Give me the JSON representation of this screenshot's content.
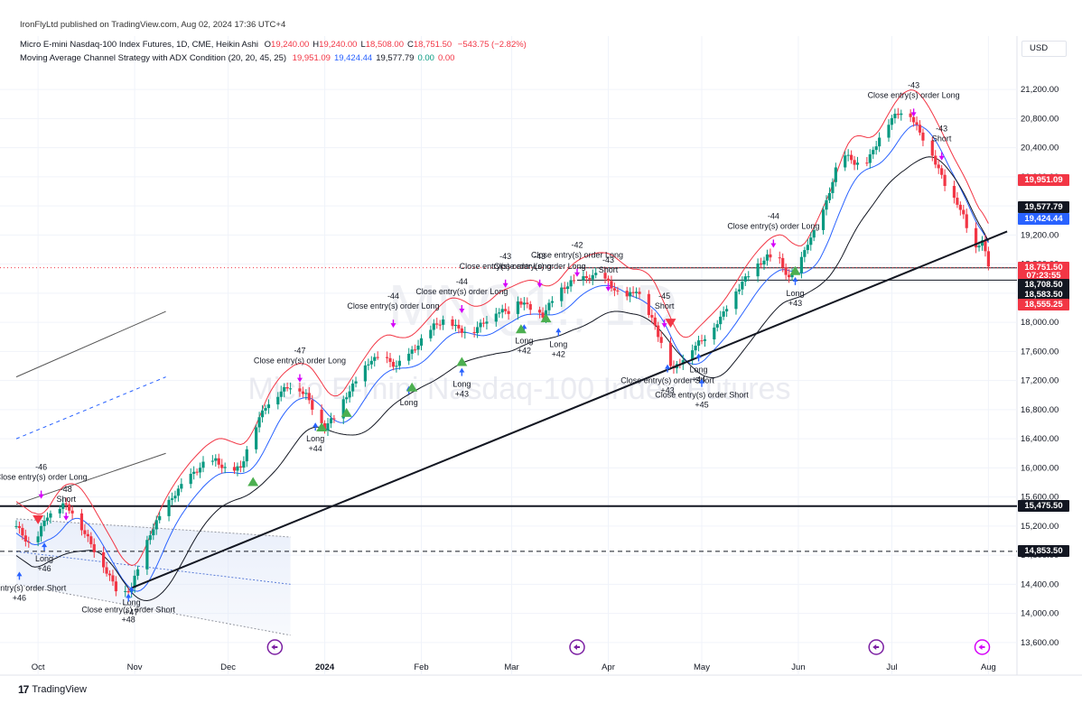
{
  "published": "IronFlyLtd published on TradingView.com, Aug 02, 2024 17:36 UTC+4",
  "symbol_line": {
    "name": "Micro E-mini Nasdaq-100 Index Futures, 1D, CME, Heikin Ashi",
    "ohlc": [
      {
        "k": "O",
        "v": "19,240.00"
      },
      {
        "k": "H",
        "v": "19,240.00"
      },
      {
        "k": "L",
        "v": "18,508.00"
      },
      {
        "k": "C",
        "v": "18,751.50"
      }
    ],
    "change": "−543.75 (−2.82%)",
    "change_color": "#f23645"
  },
  "indicator_line": {
    "name": "Moving Average Channel Strategy with ADX Condition (20, 20, 45, 25)",
    "values": [
      {
        "v": "19,951.09",
        "color": "#f23645"
      },
      {
        "v": "19,424.44",
        "color": "#2962ff"
      },
      {
        "v": "19,577.79",
        "color": "#131722"
      },
      {
        "v": "0.00",
        "color": "#089981"
      },
      {
        "v": "0.00",
        "color": "#f23645"
      }
    ]
  },
  "currency_button": "USD",
  "watermark": {
    "symbol": "MNQ1!, 1D",
    "name": "Micro E-mini Nasdaq-100 Index Futures"
  },
  "footer": {
    "brand": "TradingView",
    "logo": "17"
  },
  "chart_data": {
    "type": "candlestick",
    "title": "Micro E-mini Nasdaq-100 Index Futures, 1D, CME, Heikin Ashi",
    "ylim": [
      13400,
      21500
    ],
    "y_ticks": [
      13600,
      14000,
      14400,
      14800,
      15200,
      15600,
      16000,
      16400,
      16800,
      17200,
      17600,
      18000,
      18400,
      18800,
      19200,
      19600,
      20000,
      20400,
      20800,
      21200
    ],
    "y_tick_labels": [
      "13,600.00",
      "14,000.00",
      "14,400.00",
      "14,800.00",
      "15,200.00",
      "15,600.00",
      "16,000.00",
      "16,400.00",
      "16,800.00",
      "17,200.00",
      "17,600.00",
      "18,000.00",
      "18,400.00",
      "18,800.00",
      "19,200.00",
      "19,600.00",
      "20,000.00",
      "20,400.00",
      "20,800.00",
      "21,200.00"
    ],
    "x_ticks": [
      {
        "label": "Oct",
        "day": 7
      },
      {
        "label": "Nov",
        "day": 38
      },
      {
        "label": "Dec",
        "day": 68
      },
      {
        "label": "2024",
        "day": 99
      },
      {
        "label": "Feb",
        "day": 130
      },
      {
        "label": "Mar",
        "day": 159
      },
      {
        "label": "Apr",
        "day": 190
      },
      {
        "label": "May",
        "day": 220
      },
      {
        "label": "Jun",
        "day": 251
      },
      {
        "label": "Jul",
        "day": 281
      },
      {
        "label": "Aug",
        "day": 312
      }
    ],
    "x_range_days": [
      0,
      320
    ],
    "price_path": [
      [
        0,
        15200
      ],
      [
        5,
        14900
      ],
      [
        10,
        15350
      ],
      [
        15,
        15500
      ],
      [
        18,
        15400
      ],
      [
        22,
        15100
      ],
      [
        26,
        14800
      ],
      [
        30,
        14500
      ],
      [
        33,
        14250
      ],
      [
        37,
        14350
      ],
      [
        40,
        14750
      ],
      [
        43,
        15100
      ],
      [
        47,
        15400
      ],
      [
        51,
        15650
      ],
      [
        55,
        15850
      ],
      [
        60,
        16050
      ],
      [
        64,
        16100
      ],
      [
        68,
        15950
      ],
      [
        72,
        16000
      ],
      [
        76,
        16500
      ],
      [
        80,
        16850
      ],
      [
        85,
        17050
      ],
      [
        89,
        17150
      ],
      [
        93,
        17000
      ],
      [
        96,
        16750
      ],
      [
        99,
        16550
      ],
      [
        102,
        16700
      ],
      [
        106,
        17000
      ],
      [
        110,
        17250
      ],
      [
        114,
        17500
      ],
      [
        118,
        17500
      ],
      [
        122,
        17400
      ],
      [
        126,
        17550
      ],
      [
        130,
        17750
      ],
      [
        134,
        17950
      ],
      [
        138,
        18050
      ],
      [
        142,
        17900
      ],
      [
        146,
        17850
      ],
      [
        150,
        18000
      ],
      [
        154,
        18150
      ],
      [
        158,
        18150
      ],
      [
        161,
        18300
      ],
      [
        165,
        18200
      ],
      [
        169,
        18100
      ],
      [
        172,
        18300
      ],
      [
        175,
        18450
      ],
      [
        178,
        18550
      ],
      [
        182,
        18600
      ],
      [
        186,
        18650
      ],
      [
        190,
        18550
      ],
      [
        193,
        18400
      ],
      [
        196,
        18350
      ],
      [
        199,
        18450
      ],
      [
        202,
        18200
      ],
      [
        205,
        17950
      ],
      [
        208,
        17600
      ],
      [
        211,
        17350
      ],
      [
        214,
        17500
      ],
      [
        217,
        17650
      ],
      [
        220,
        17750
      ],
      [
        223,
        17900
      ],
      [
        226,
        18050
      ],
      [
        229,
        18300
      ],
      [
        233,
        18550
      ],
      [
        237,
        18750
      ],
      [
        241,
        18900
      ],
      [
        245,
        18850
      ],
      [
        248,
        18600
      ],
      [
        251,
        18750
      ],
      [
        254,
        19100
      ],
      [
        257,
        19300
      ],
      [
        260,
        19650
      ],
      [
        263,
        20100
      ],
      [
        266,
        20300
      ],
      [
        269,
        20200
      ],
      [
        272,
        20150
      ],
      [
        275,
        20350
      ],
      [
        278,
        20650
      ],
      [
        281,
        20800
      ],
      [
        284,
        20900
      ],
      [
        287,
        20850
      ],
      [
        290,
        20600
      ],
      [
        293,
        20400
      ],
      [
        296,
        20100
      ],
      [
        299,
        19800
      ],
      [
        302,
        19650
      ],
      [
        304,
        19450
      ],
      [
        306,
        19150
      ],
      [
        308,
        19000
      ],
      [
        310,
        19150
      ],
      [
        312,
        18750
      ]
    ],
    "series": [
      {
        "name": "",
        "color": "#f23645",
        "offset": 350,
        "last": "19,951.09"
      },
      {
        "name": "",
        "color": "#2962ff",
        "offset": -150,
        "last": "19,424.44"
      },
      {
        "name": "",
        "color": "#131722",
        "offset": -420,
        "last": "19,577.79"
      }
    ],
    "price_labels": [
      {
        "v": "19,951.09",
        "price": 19951,
        "bg": "#f23645"
      },
      {
        "v": "19,577.79",
        "price": 19578,
        "bg": "#131722"
      },
      {
        "v": "19,424.44",
        "price": 19424,
        "bg": "#2962ff"
      },
      {
        "v": "18,751.50",
        "price": 18751,
        "bg": "#f23645"
      },
      {
        "v": "07:23:55",
        "price": 18640,
        "bg": "#f23645"
      },
      {
        "v": "18,708.50",
        "price": 18520,
        "bg": "#131722"
      },
      {
        "v": "18,583.50",
        "price": 18380,
        "bg": "#131722"
      },
      {
        "v": "18,555.25",
        "price": 18240,
        "bg": "#f23645"
      },
      {
        "v": "15,475.50",
        "price": 15475,
        "bg": "#131722"
      },
      {
        "v": "14,853.50",
        "price": 14853,
        "bg": "#131722"
      }
    ],
    "horizontal_lines": [
      {
        "price": 15475,
        "style": "solid",
        "width": 2
      },
      {
        "price": 14853,
        "style": "dashed",
        "width": 1
      }
    ],
    "trendline": {
      "from": [
        37,
        14350
      ],
      "to": [
        318,
        19250
      ]
    },
    "annotations": [
      {
        "day": 8,
        "price": 15700,
        "lines": [
          "-46",
          "Close entry(s) order Long"
        ],
        "above": true
      },
      {
        "day": 16,
        "price": 15400,
        "lines": [
          "-48",
          "Short"
        ],
        "above": true
      },
      {
        "day": 9,
        "price": 14850,
        "lines": [
          "Long",
          "+46"
        ],
        "above": false
      },
      {
        "day": 1,
        "price": 14450,
        "lines": [
          "Close entry(s) order Short",
          "+46"
        ],
        "above": false
      },
      {
        "day": 37,
        "price": 14250,
        "lines": [
          "Long",
          "+47"
        ],
        "above": false
      },
      {
        "day": 36,
        "price": 14150,
        "lines": [
          "Close entry(s) order Short",
          "+48"
        ],
        "above": false
      },
      {
        "day": 91,
        "price": 17300,
        "lines": [
          "-47",
          "Close entry(s) order Long"
        ],
        "above": true
      },
      {
        "day": 96,
        "price": 16500,
        "lines": [
          "Long",
          "+44"
        ],
        "above": false
      },
      {
        "day": 121,
        "price": 18050,
        "lines": [
          "-44",
          "Close entry(s) order Long"
        ],
        "above": true
      },
      {
        "day": 126,
        "price": 17000,
        "lines": [
          "Long"
        ],
        "above": false
      },
      {
        "day": 143,
        "price": 18250,
        "lines": [
          "-44",
          "Close entry(s) order Long"
        ],
        "above": true
      },
      {
        "day": 143,
        "price": 17250,
        "lines": [
          "Long",
          "+43"
        ],
        "above": false
      },
      {
        "day": 157,
        "price": 18600,
        "lines": [
          "-43",
          "Close entry(s) order Long"
        ],
        "above": true
      },
      {
        "day": 163,
        "price": 17850,
        "lines": [
          "Long",
          "+42"
        ],
        "above": false
      },
      {
        "day": 168,
        "price": 18600,
        "lines": [
          "-43",
          "Close entry(s) order Long"
        ],
        "above": true
      },
      {
        "day": 174,
        "price": 17800,
        "lines": [
          "Long",
          "+42"
        ],
        "above": false
      },
      {
        "day": 180,
        "price": 18750,
        "lines": [
          "-42",
          "Close entry(s) order Long"
        ],
        "above": true
      },
      {
        "day": 190,
        "price": 18550,
        "lines": [
          "-43",
          "Short"
        ],
        "above": true
      },
      {
        "day": 209,
        "price": 17300,
        "lines": [
          "Close entry(s) order Short",
          "+43"
        ],
        "above": false
      },
      {
        "day": 208,
        "price": 18050,
        "lines": [
          "-45",
          "Short"
        ],
        "above": true
      },
      {
        "day": 219,
        "price": 17450,
        "lines": [
          "Long",
          "+44"
        ],
        "above": false
      },
      {
        "day": 220,
        "price": 17100,
        "lines": [
          "Close entry(s) order Short",
          "+45"
        ],
        "above": false
      },
      {
        "day": 243,
        "price": 19150,
        "lines": [
          "-44",
          "Close entry(s) order Long"
        ],
        "above": true
      },
      {
        "day": 250,
        "price": 18500,
        "lines": [
          "Long",
          "+43"
        ],
        "above": false
      },
      {
        "day": 288,
        "price": 20950,
        "lines": [
          "-43",
          "Close entry(s) order Long"
        ],
        "above": true
      },
      {
        "day": 297,
        "price": 20350,
        "lines": [
          "-43",
          "Short"
        ],
        "above": true
      }
    ]
  }
}
